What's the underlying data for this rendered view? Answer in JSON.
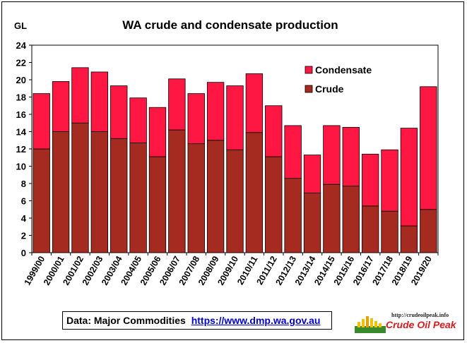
{
  "chart_data": {
    "type": "bar",
    "stacked": true,
    "title": "WA crude and condensate production",
    "ylabel": "GL",
    "xlabel": "",
    "ylim": [
      0,
      24
    ],
    "yticks": [
      0,
      2,
      4,
      6,
      8,
      10,
      12,
      14,
      16,
      18,
      20,
      22,
      24
    ],
    "grid": false,
    "legend_position": "top-right",
    "categories": [
      "1999/00",
      "2000/01",
      "2001/02",
      "2002/03",
      "2003/04",
      "2004/05",
      "2005/06",
      "2006/07",
      "2007/08",
      "2008/09",
      "2009/10",
      "2010/11",
      "2011/12",
      "2012/13",
      "2013/14",
      "2014/15",
      "2015/16",
      "2016/17",
      "2017/18",
      "2018/19",
      "2019/20"
    ],
    "series": [
      {
        "name": "Crude",
        "color": "#a52a1f",
        "values": [
          12.0,
          14.0,
          15.0,
          14.0,
          13.2,
          12.7,
          11.1,
          14.2,
          12.6,
          13.0,
          11.9,
          13.9,
          11.1,
          8.6,
          6.9,
          7.9,
          7.7,
          5.4,
          4.8,
          3.1,
          5.0
        ]
      },
      {
        "name": "Condensate",
        "color": "#ff1744",
        "values": [
          6.4,
          5.8,
          6.4,
          6.9,
          6.1,
          5.2,
          5.7,
          5.9,
          5.8,
          6.7,
          7.4,
          6.8,
          5.9,
          6.1,
          4.4,
          6.8,
          6.8,
          6.0,
          7.1,
          11.3,
          14.2
        ]
      }
    ]
  },
  "source": {
    "label": "Data: Major Commodities",
    "url": "https://www.dmp.wa.gov.au"
  },
  "logo": {
    "url": "http://crudeoilpeak.info",
    "name": "Crude Oil Peak"
  }
}
